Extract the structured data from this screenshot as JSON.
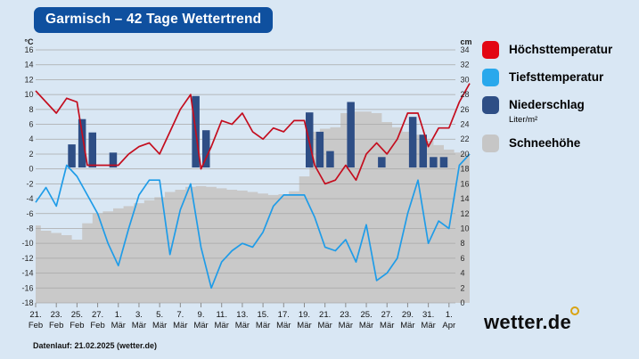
{
  "title": "Garmisch – 42 Tage Wettertrend",
  "footer": "Datenlauf: 21.02.2025 (wetter.de)",
  "logo_text": "wetter.de",
  "colors": {
    "page_bg": "#d9e7f4",
    "title_box": "#0f509f",
    "max_temp": "#c40d1e",
    "min_temp": "#1f9ce8",
    "precip": "#2e4e85",
    "snow": "#c9c9c9",
    "grid": "#a8a8a8",
    "legend_red": "#e30613",
    "legend_blue": "#29a8ec",
    "logo_ring": "#d9a312"
  },
  "legend": {
    "items": [
      {
        "label": "Höchsttemperatur",
        "sub": "",
        "color": "#e30613"
      },
      {
        "label": "Tiefsttemperatur",
        "sub": "",
        "color": "#29a8ec"
      },
      {
        "label": "Niederschlag",
        "sub": "Liter/m²",
        "color": "#2e4e85"
      },
      {
        "label": "Schneehöhe",
        "sub": "",
        "color": "#c6c6c6"
      }
    ]
  },
  "chart_data": {
    "type": "combo",
    "title": "Garmisch – 42 Tage Wettertrend",
    "grid": true,
    "left_axis": {
      "unit": "°C",
      "min": -18,
      "max": 16,
      "step": 2
    },
    "right_axis": {
      "unit": "cm",
      "min": 0,
      "max": 34,
      "step": 2
    },
    "x_tick_labels": [
      {
        "day": "21.",
        "month": "Feb"
      },
      {
        "day": "23.",
        "month": "Feb"
      },
      {
        "day": "25.",
        "month": "Feb"
      },
      {
        "day": "27.",
        "month": "Feb"
      },
      {
        "day": "1.",
        "month": "Mär"
      },
      {
        "day": "3.",
        "month": "Mär"
      },
      {
        "day": "5.",
        "month": "Mär"
      },
      {
        "day": "7.",
        "month": "Mär"
      },
      {
        "day": "9.",
        "month": "Mär"
      },
      {
        "day": "11.",
        "month": "Mär"
      },
      {
        "day": "13.",
        "month": "Mär"
      },
      {
        "day": "15.",
        "month": "Mär"
      },
      {
        "day": "17.",
        "month": "Mär"
      },
      {
        "day": "19.",
        "month": "Mär"
      },
      {
        "day": "21.",
        "month": "Mär"
      },
      {
        "day": "23.",
        "month": "Mär"
      },
      {
        "day": "25.",
        "month": "Mär"
      },
      {
        "day": "27.",
        "month": "Mär"
      },
      {
        "day": "29.",
        "month": "Mär"
      },
      {
        "day": "31.",
        "month": "Mär"
      },
      {
        "day": "1.",
        "month": "Apr"
      }
    ],
    "x_tick_day_indices": [
      0,
      2,
      4,
      6,
      8,
      10,
      12,
      14,
      16,
      18,
      20,
      22,
      24,
      26,
      28,
      30,
      32,
      34,
      36,
      38,
      40
    ],
    "series": [
      {
        "name": "Höchsttemperatur",
        "type": "line",
        "axis": "left",
        "color": "#c40d1e",
        "values": [
          10.5,
          9,
          7.5,
          9.5,
          9,
          0.5,
          0.5,
          0.5,
          0.5,
          2,
          3,
          3.5,
          2,
          5,
          8,
          10,
          0,
          3,
          6.5,
          6,
          7.5,
          5,
          4,
          5.5,
          5,
          6.5,
          6.5,
          0.5,
          -2,
          -1.5,
          0.5,
          -1.5,
          2,
          3.5,
          2,
          4,
          7.5,
          7.5,
          3,
          5.5,
          5.5,
          9,
          11.5
        ]
      },
      {
        "name": "Tiefsttemperatur",
        "type": "line",
        "axis": "left",
        "color": "#1f9ce8",
        "values": [
          -4.5,
          -2.5,
          -5,
          0.5,
          -1,
          -3.5,
          -6,
          -10,
          -13,
          -8,
          -3.5,
          -1.5,
          -1.5,
          -11.5,
          -5.5,
          -2,
          -10.5,
          -16,
          -12.5,
          -11,
          -10,
          -10.5,
          -8.5,
          -5,
          -3.5,
          -3.5,
          -3.5,
          -6.5,
          -10.5,
          -11,
          -9.5,
          -12.5,
          -7.5,
          -15,
          -14,
          -12,
          -6,
          -1.5,
          -10,
          -7,
          -8,
          0.5,
          2
        ]
      },
      {
        "name": "Niederschlag",
        "unit": "Liter/m²",
        "type": "bar",
        "axis": "right",
        "color": "#2e4e85",
        "baseline_cm": 18.2,
        "bars": [
          {
            "day": 3,
            "top_cm": 21.3
          },
          {
            "day": 4,
            "top_cm": 24.7
          },
          {
            "day": 5,
            "top_cm": 22.9
          },
          {
            "day": 7,
            "top_cm": 20.2
          },
          {
            "day": 15,
            "top_cm": 27.8
          },
          {
            "day": 16,
            "top_cm": 23.2
          },
          {
            "day": 26,
            "top_cm": 25.6
          },
          {
            "day": 27,
            "top_cm": 23.0
          },
          {
            "day": 28,
            "top_cm": 20.4
          },
          {
            "day": 30,
            "top_cm": 27.0
          },
          {
            "day": 33,
            "top_cm": 19.6
          },
          {
            "day": 36,
            "top_cm": 25.0
          },
          {
            "day": 37,
            "top_cm": 22.6
          },
          {
            "day": 38,
            "top_cm": 19.6
          },
          {
            "day": 39,
            "top_cm": 19.6
          }
        ]
      },
      {
        "name": "Schneehöhe",
        "type": "step-area",
        "axis": "right",
        "color": "#c9c9c9",
        "values": [
          10.4,
          9.7,
          9.4,
          9.1,
          8.5,
          10.7,
          12.0,
          12.3,
          12.7,
          13.0,
          13.4,
          13.8,
          14.2,
          14.9,
          15.2,
          15.6,
          15.7,
          15.6,
          15.4,
          15.2,
          15.1,
          14.9,
          14.7,
          14.5,
          14.6,
          15.0,
          17.0,
          23.0,
          23.4,
          23.6,
          25.5,
          25.7,
          25.7,
          25.5,
          24.3,
          23.6,
          23.0,
          22.6,
          21.8,
          21.2,
          20.6,
          20.2,
          20.0
        ]
      }
    ]
  }
}
